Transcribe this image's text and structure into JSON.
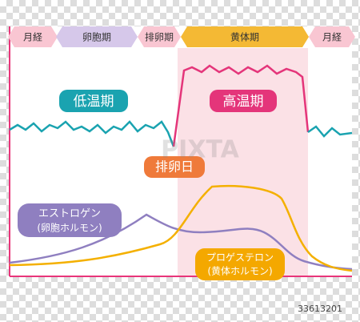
{
  "phases": [
    "月経",
    "卵胞期",
    "排卵期",
    "黄体期",
    "月経"
  ],
  "labels": {
    "low_temp": "低温期",
    "high_temp": "高温期",
    "ovulation_day": "排卵日",
    "estrogen": [
      "エストロゲン",
      "(卵胞ホルモン)"
    ],
    "progesterone": [
      "プロゲステロン",
      "(黄体ホルモン)"
    ]
  },
  "watermark": "PIXTA",
  "image_id": "33613201"
}
